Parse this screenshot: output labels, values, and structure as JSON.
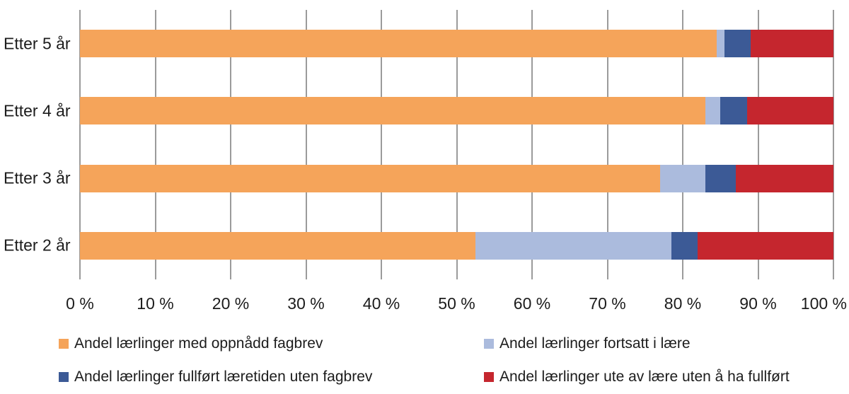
{
  "chart_data": {
    "type": "bar",
    "orientation": "horizontal",
    "stacked": true,
    "title": "",
    "xlabel": "",
    "ylabel": "",
    "xlim": [
      0,
      100
    ],
    "grid": "vertical",
    "legend_position": "bottom-two-columns",
    "categories": [
      "Etter 5 år",
      "Etter 4 år",
      "Etter 3 år",
      "Etter 2 år"
    ],
    "x_ticks": [
      "0 %",
      "10 %",
      "20 %",
      "30 %",
      "40 %",
      "50 %",
      "60 %",
      "70 %",
      "80 %",
      "90 %",
      "100 %"
    ],
    "series": [
      {
        "name": "Andel lærlinger med oppnådd fagbrev",
        "color": "#F5A45A",
        "values": [
          84.5,
          83.0,
          77.0,
          52.5
        ]
      },
      {
        "name": "Andel lærlinger fortsatt i lære",
        "color": "#ABBBDD",
        "values": [
          1.0,
          2.0,
          6.0,
          26.0
        ]
      },
      {
        "name": "Andel lærlinger fullført læretiden uten fagbrev",
        "color": "#3C5A96",
        "values": [
          3.5,
          3.5,
          4.0,
          3.5
        ]
      },
      {
        "name": "Andel lærlinger ute av lære uten å ha fullført",
        "color": "#C5262E",
        "values": [
          11.0,
          11.5,
          13.0,
          18.0
        ]
      }
    ],
    "colors": {
      "background": "#FFFFFF",
      "gridline": "#9B9B9B",
      "text": "#1C1C1C"
    }
  }
}
